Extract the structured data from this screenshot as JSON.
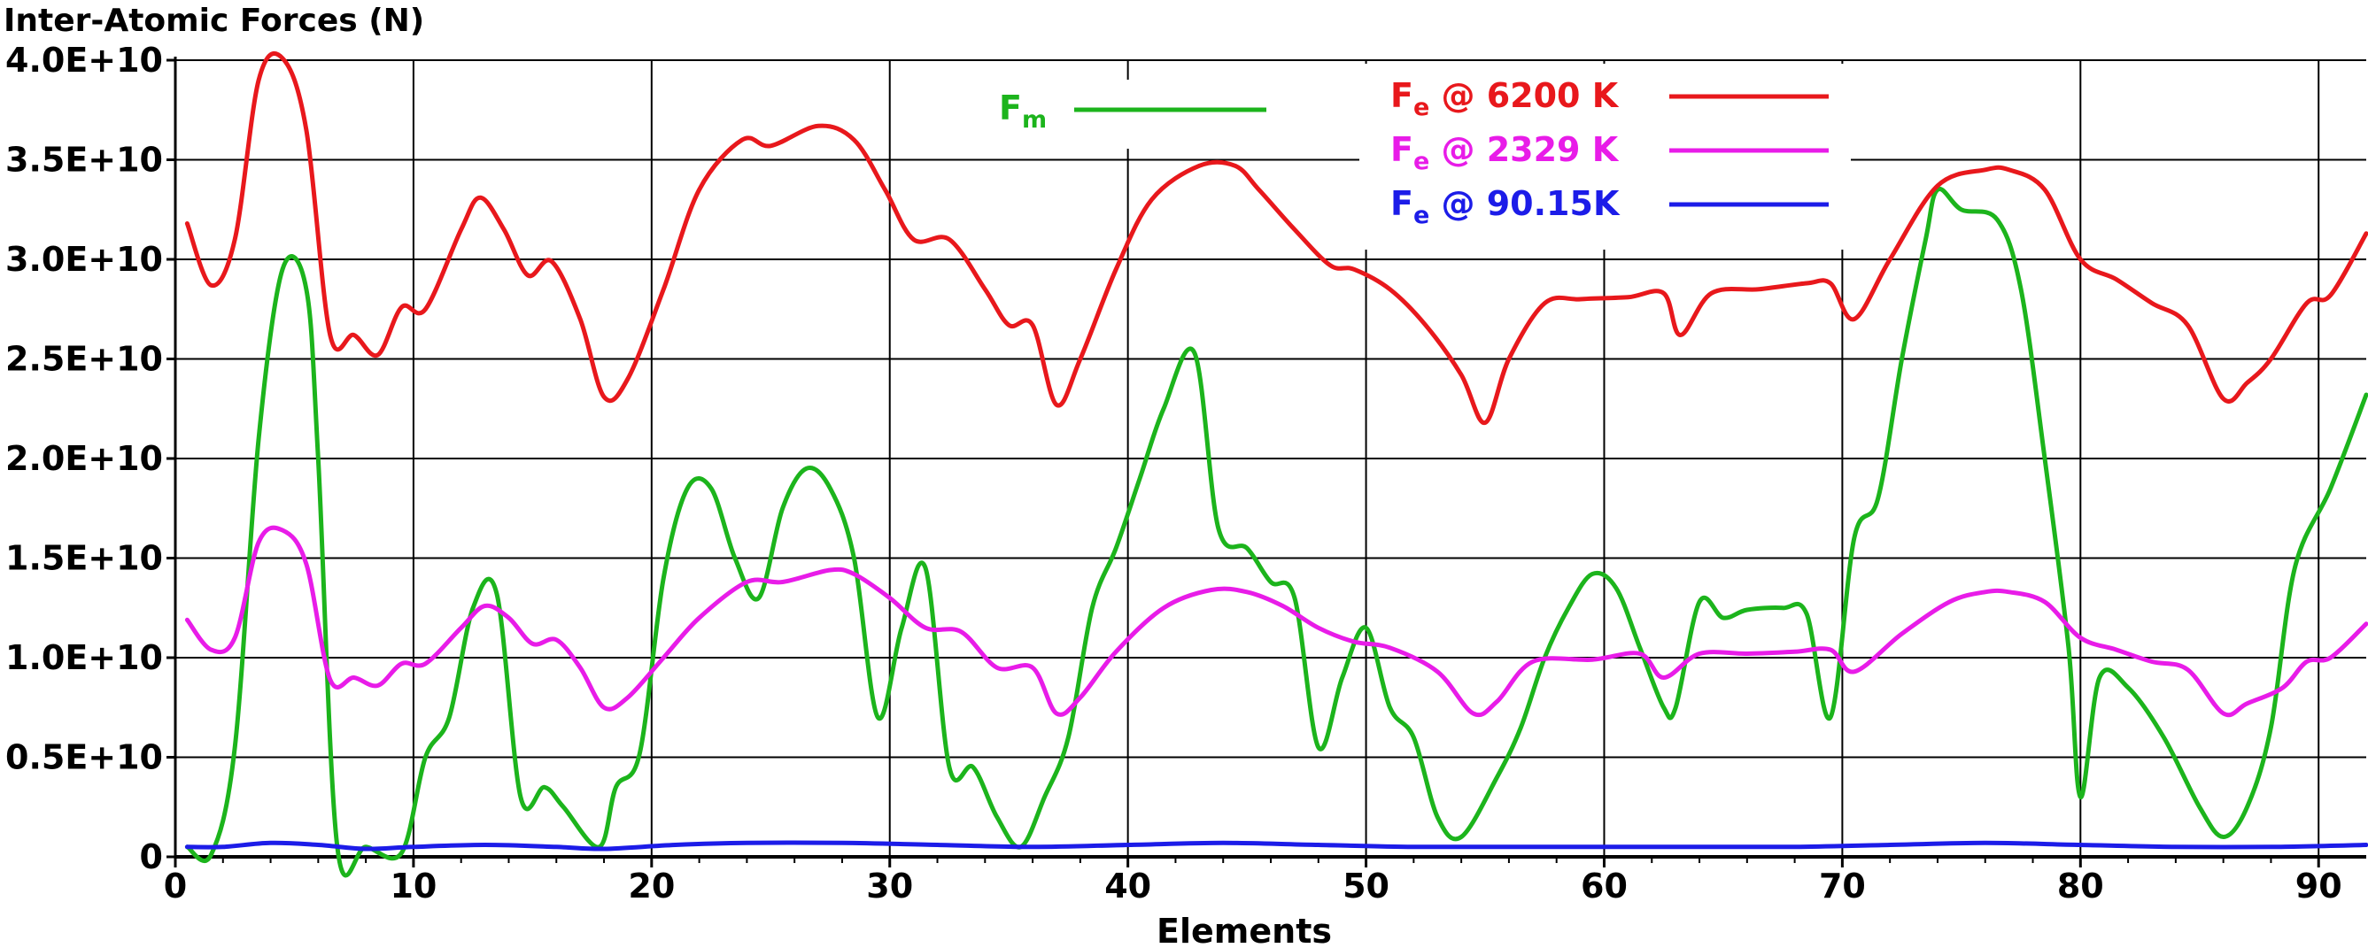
{
  "chart_data": {
    "type": "line",
    "title": "Inter-Atomic Forces (N)",
    "xlabel": "Elements",
    "ylabel": "",
    "xlim": [
      0,
      92
    ],
    "ylim": [
      0,
      40000000000
    ],
    "x_ticks": [
      0,
      10,
      20,
      30,
      40,
      50,
      60,
      70,
      80,
      90
    ],
    "y_ticks": [
      0,
      5000000000,
      10000000000,
      15000000000,
      20000000000,
      25000000000,
      30000000000,
      35000000000,
      40000000000
    ],
    "y_tick_labels": [
      "0",
      "0.5E+10",
      "1.0E+10",
      "1.5E+10",
      "2.0E+10",
      "2.5E+10",
      "3.0E+10",
      "3.5E+10",
      "4.0E+10"
    ],
    "grid": true,
    "series": [
      {
        "name_main": "F",
        "name_sub": "e",
        "name_rest": " @ 6200 K",
        "color": "#e8181c",
        "points": [
          [
            0.5,
            3.18
          ],
          [
            1.5,
            2.87
          ],
          [
            2.5,
            3.1
          ],
          [
            3.5,
            3.9
          ],
          [
            4.5,
            4.01
          ],
          [
            5.5,
            3.65
          ],
          [
            6.5,
            2.62
          ],
          [
            7.5,
            2.62
          ],
          [
            8.5,
            2.52
          ],
          [
            9.5,
            2.76
          ],
          [
            10.5,
            2.75
          ],
          [
            12.0,
            3.15
          ],
          [
            12.8,
            3.31
          ],
          [
            13.8,
            3.15
          ],
          [
            14.8,
            2.92
          ],
          [
            15.8,
            2.99
          ],
          [
            17.0,
            2.7
          ],
          [
            18.0,
            2.31
          ],
          [
            19.0,
            2.4
          ],
          [
            20.5,
            2.85
          ],
          [
            22.0,
            3.35
          ],
          [
            23.8,
            3.6
          ],
          [
            25.0,
            3.57
          ],
          [
            27.0,
            3.67
          ],
          [
            28.5,
            3.6
          ],
          [
            29.8,
            3.35
          ],
          [
            31.0,
            3.1
          ],
          [
            32.5,
            3.1
          ],
          [
            34.0,
            2.85
          ],
          [
            35.0,
            2.67
          ],
          [
            36.0,
            2.67
          ],
          [
            37.0,
            2.27
          ],
          [
            38.0,
            2.5
          ],
          [
            39.5,
            2.95
          ],
          [
            41.0,
            3.3
          ],
          [
            43.0,
            3.47
          ],
          [
            44.5,
            3.47
          ],
          [
            45.5,
            3.35
          ],
          [
            47.0,
            3.15
          ],
          [
            48.5,
            2.97
          ],
          [
            49.5,
            2.95
          ],
          [
            51.0,
            2.85
          ],
          [
            52.5,
            2.67
          ],
          [
            54.0,
            2.42
          ],
          [
            55.0,
            2.18
          ],
          [
            56.0,
            2.5
          ],
          [
            57.5,
            2.78
          ],
          [
            59.0,
            2.8
          ],
          [
            61.0,
            2.81
          ],
          [
            62.5,
            2.83
          ],
          [
            63.2,
            2.62
          ],
          [
            64.5,
            2.83
          ],
          [
            66.5,
            2.85
          ],
          [
            68.5,
            2.88
          ],
          [
            69.5,
            2.88
          ],
          [
            70.5,
            2.7
          ],
          [
            72.0,
            3.0
          ],
          [
            74.0,
            3.37
          ],
          [
            76.0,
            3.45
          ],
          [
            77.0,
            3.45
          ],
          [
            78.5,
            3.35
          ],
          [
            80.0,
            3.0
          ],
          [
            81.5,
            2.9
          ],
          [
            83.0,
            2.78
          ],
          [
            84.5,
            2.67
          ],
          [
            86.0,
            2.3
          ],
          [
            87.0,
            2.38
          ],
          [
            88.0,
            2.5
          ],
          [
            89.5,
            2.78
          ],
          [
            90.5,
            2.82
          ],
          [
            92.0,
            3.13
          ]
        ]
      },
      {
        "name_main": "F",
        "name_sub": "e",
        "name_rest": " @ 2329 K",
        "color": "#e81ce8",
        "points": [
          [
            0.5,
            1.19
          ],
          [
            1.5,
            1.04
          ],
          [
            2.5,
            1.1
          ],
          [
            3.5,
            1.58
          ],
          [
            4.5,
            1.64
          ],
          [
            5.5,
            1.47
          ],
          [
            6.5,
            0.89
          ],
          [
            7.5,
            0.9
          ],
          [
            8.5,
            0.86
          ],
          [
            9.5,
            0.97
          ],
          [
            10.5,
            0.97
          ],
          [
            12.0,
            1.15
          ],
          [
            13.0,
            1.26
          ],
          [
            14.0,
            1.2
          ],
          [
            15.0,
            1.07
          ],
          [
            16.0,
            1.09
          ],
          [
            17.0,
            0.95
          ],
          [
            18.0,
            0.75
          ],
          [
            19.0,
            0.8
          ],
          [
            20.5,
            1.0
          ],
          [
            22.0,
            1.2
          ],
          [
            24.0,
            1.38
          ],
          [
            25.5,
            1.38
          ],
          [
            27.5,
            1.44
          ],
          [
            28.5,
            1.42
          ],
          [
            30.0,
            1.3
          ],
          [
            31.5,
            1.15
          ],
          [
            33.0,
            1.13
          ],
          [
            34.5,
            0.95
          ],
          [
            36.0,
            0.95
          ],
          [
            37.0,
            0.72
          ],
          [
            38.0,
            0.8
          ],
          [
            39.5,
            1.03
          ],
          [
            41.5,
            1.25
          ],
          [
            43.5,
            1.34
          ],
          [
            45.0,
            1.33
          ],
          [
            46.5,
            1.26
          ],
          [
            48.0,
            1.15
          ],
          [
            49.5,
            1.08
          ],
          [
            51.0,
            1.05
          ],
          [
            53.0,
            0.93
          ],
          [
            54.5,
            0.72
          ],
          [
            55.5,
            0.78
          ],
          [
            57.0,
            0.98
          ],
          [
            59.5,
            0.99
          ],
          [
            61.5,
            1.02
          ],
          [
            62.5,
            0.9
          ],
          [
            64.0,
            1.02
          ],
          [
            66.0,
            1.02
          ],
          [
            68.0,
            1.03
          ],
          [
            69.5,
            1.04
          ],
          [
            70.5,
            0.93
          ],
          [
            72.5,
            1.12
          ],
          [
            74.5,
            1.28
          ],
          [
            76.0,
            1.33
          ],
          [
            77.0,
            1.33
          ],
          [
            78.5,
            1.28
          ],
          [
            80.0,
            1.1
          ],
          [
            81.5,
            1.04
          ],
          [
            83.0,
            0.98
          ],
          [
            84.5,
            0.94
          ],
          [
            86.0,
            0.72
          ],
          [
            87.0,
            0.77
          ],
          [
            88.5,
            0.85
          ],
          [
            89.5,
            0.98
          ],
          [
            90.5,
            1.0
          ],
          [
            92.0,
            1.17
          ]
        ]
      },
      {
        "name_main": "F",
        "name_sub": "e",
        "name_rest": " @ 90.15K",
        "color": "#1c1ce8",
        "points": [
          [
            0.5,
            0.05
          ],
          [
            2.0,
            0.05
          ],
          [
            4.0,
            0.07
          ],
          [
            6.0,
            0.06
          ],
          [
            8.0,
            0.04
          ],
          [
            10.0,
            0.05
          ],
          [
            13.0,
            0.06
          ],
          [
            16.0,
            0.05
          ],
          [
            18.0,
            0.04
          ],
          [
            21.0,
            0.06
          ],
          [
            24.0,
            0.07
          ],
          [
            28.0,
            0.07
          ],
          [
            32.0,
            0.06
          ],
          [
            36.0,
            0.05
          ],
          [
            40.0,
            0.06
          ],
          [
            44.0,
            0.07
          ],
          [
            48.0,
            0.06
          ],
          [
            52.0,
            0.05
          ],
          [
            56.0,
            0.05
          ],
          [
            60.0,
            0.05
          ],
          [
            64.0,
            0.05
          ],
          [
            68.0,
            0.05
          ],
          [
            72.0,
            0.06
          ],
          [
            76.0,
            0.07
          ],
          [
            80.0,
            0.06
          ],
          [
            84.0,
            0.05
          ],
          [
            88.0,
            0.05
          ],
          [
            92.0,
            0.06
          ]
        ]
      },
      {
        "name_main": "F",
        "name_sub": "m",
        "name_rest": "",
        "color": "#1cb41c",
        "points": [
          [
            0.5,
            0.05
          ],
          [
            1.5,
            0.01
          ],
          [
            2.5,
            0.55
          ],
          [
            3.5,
            2.1
          ],
          [
            4.5,
            2.95
          ],
          [
            5.5,
            2.85
          ],
          [
            6.0,
            2.0
          ],
          [
            6.8,
            0.05
          ],
          [
            8.0,
            0.05
          ],
          [
            9.5,
            0.02
          ],
          [
            10.5,
            0.5
          ],
          [
            11.5,
            0.7
          ],
          [
            12.5,
            1.25
          ],
          [
            13.5,
            1.32
          ],
          [
            14.5,
            0.3
          ],
          [
            15.5,
            0.35
          ],
          [
            16.3,
            0.25
          ],
          [
            17.8,
            0.05
          ],
          [
            18.5,
            0.35
          ],
          [
            19.5,
            0.52
          ],
          [
            20.5,
            1.4
          ],
          [
            21.5,
            1.85
          ],
          [
            22.5,
            1.85
          ],
          [
            23.5,
            1.5
          ],
          [
            24.5,
            1.3
          ],
          [
            25.5,
            1.75
          ],
          [
            26.5,
            1.95
          ],
          [
            27.5,
            1.85
          ],
          [
            28.5,
            1.5
          ],
          [
            29.5,
            0.7
          ],
          [
            30.5,
            1.15
          ],
          [
            31.5,
            1.45
          ],
          [
            32.5,
            0.45
          ],
          [
            33.5,
            0.45
          ],
          [
            34.5,
            0.2
          ],
          [
            35.5,
            0.05
          ],
          [
            36.5,
            0.3
          ],
          [
            37.5,
            0.6
          ],
          [
            38.5,
            1.25
          ],
          [
            39.5,
            1.55
          ],
          [
            40.5,
            1.9
          ],
          [
            41.5,
            2.25
          ],
          [
            42.8,
            2.53
          ],
          [
            43.8,
            1.65
          ],
          [
            45.0,
            1.55
          ],
          [
            46.0,
            1.38
          ],
          [
            47.0,
            1.3
          ],
          [
            48.0,
            0.55
          ],
          [
            49.0,
            0.9
          ],
          [
            50.0,
            1.15
          ],
          [
            51.0,
            0.75
          ],
          [
            52.0,
            0.6
          ],
          [
            53.0,
            0.2
          ],
          [
            54.0,
            0.1
          ],
          [
            55.5,
            0.4
          ],
          [
            56.5,
            0.65
          ],
          [
            57.5,
            1.0
          ],
          [
            58.5,
            1.25
          ],
          [
            59.5,
            1.42
          ],
          [
            60.5,
            1.35
          ],
          [
            61.5,
            1.05
          ],
          [
            62.5,
            0.75
          ],
          [
            63.0,
            0.75
          ],
          [
            64.0,
            1.28
          ],
          [
            65.0,
            1.2
          ],
          [
            66.0,
            1.24
          ],
          [
            67.5,
            1.25
          ],
          [
            68.5,
            1.22
          ],
          [
            69.5,
            0.7
          ],
          [
            70.5,
            1.6
          ],
          [
            71.5,
            1.8
          ],
          [
            72.5,
            2.5
          ],
          [
            73.5,
            3.1
          ],
          [
            74.0,
            3.35
          ],
          [
            75.0,
            3.25
          ],
          [
            76.5,
            3.2
          ],
          [
            77.5,
            2.85
          ],
          [
            78.5,
            2.0
          ],
          [
            79.5,
            1.05
          ],
          [
            80.0,
            0.3
          ],
          [
            80.8,
            0.9
          ],
          [
            82.0,
            0.85
          ],
          [
            83.5,
            0.6
          ],
          [
            85.0,
            0.25
          ],
          [
            86.0,
            0.1
          ],
          [
            87.0,
            0.25
          ],
          [
            88.0,
            0.65
          ],
          [
            89.0,
            1.45
          ],
          [
            90.5,
            1.85
          ],
          [
            92.0,
            2.32
          ]
        ]
      }
    ],
    "legend": "top-center"
  }
}
